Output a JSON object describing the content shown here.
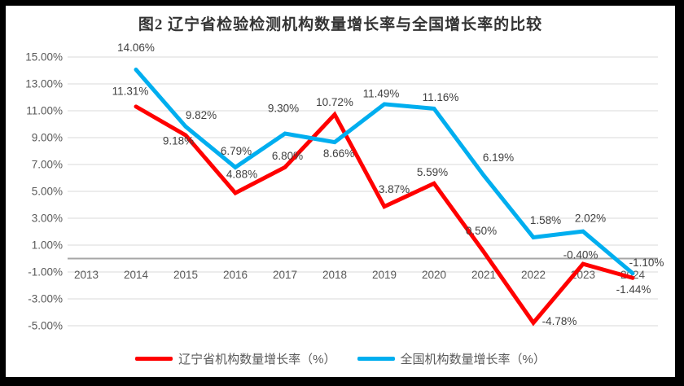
{
  "frame": {
    "border_color": "#000000",
    "background": "#ffffff"
  },
  "chart_data": {
    "type": "line",
    "title": "图2 辽宁省检验检测机构数量增长率与全国增长率的比较",
    "categories": [
      "2013",
      "2014",
      "2015",
      "2016",
      "2017",
      "2018",
      "2019",
      "2020",
      "2021",
      "2022",
      "2023",
      "2024"
    ],
    "series": [
      {
        "name": "辽宁省机构数量增长率（%）",
        "color": "#ff0000",
        "values": [
          null,
          11.31,
          9.18,
          4.88,
          6.8,
          10.72,
          3.87,
          5.59,
          0.5,
          -4.78,
          -0.4,
          -1.44
        ],
        "labels": [
          "",
          "11.31%",
          "9.18%",
          "4.88%",
          "6.80%",
          "10.72%",
          "3.87%",
          "5.59%",
          "0.50%",
          "-4.78%",
          "-0.40%",
          "-1.44%"
        ]
      },
      {
        "name": "全国机构数量增长率（%）",
        "color": "#00aeef",
        "values": [
          null,
          14.06,
          9.82,
          6.79,
          9.3,
          8.66,
          11.49,
          11.16,
          6.19,
          1.58,
          2.02,
          -1.1
        ],
        "labels": [
          "",
          "14.06%",
          "9.82%",
          "6.79%",
          "9.30%",
          "8.66%",
          "11.49%",
          "11.16%",
          "6.19%",
          "1.58%",
          "2.02%",
          "-1.10%"
        ]
      }
    ],
    "y_axis": {
      "min": -5,
      "max": 15,
      "step": 2,
      "tick_labels": [
        "15.00%",
        "13.00%",
        "11.00%",
        "9.00%",
        "7.00%",
        "5.00%",
        "3.00%",
        "1.00%",
        "-1.00%",
        "-3.00%",
        "-5.00%"
      ]
    },
    "x_axis": {
      "tick_labels": [
        "2013",
        "2014",
        "2015",
        "2016",
        "2017",
        "2018",
        "2019",
        "2020",
        "2021",
        "2022",
        "2023",
        "2024"
      ]
    },
    "grid": true,
    "legend_position": "bottom",
    "colors": {
      "gridline": "#d9d9d9",
      "zero_line": "#a6a6a6",
      "axis_text": "#595959",
      "data_label": "#404040",
      "title_text": "#333333"
    }
  }
}
